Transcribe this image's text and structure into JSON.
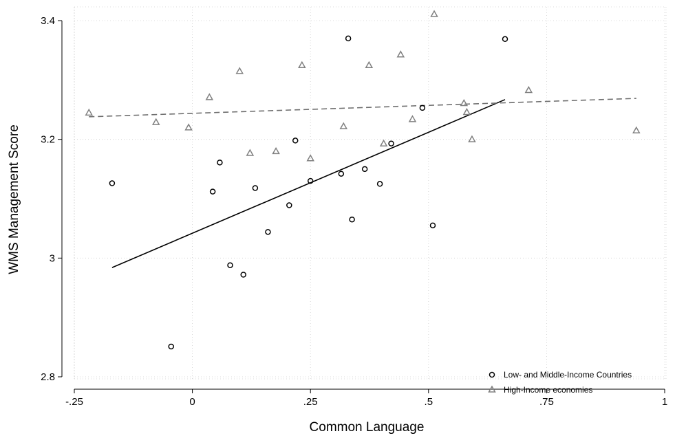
{
  "chart_data": {
    "type": "scatter",
    "xlabel": "Common Language",
    "ylabel": "WMS Management Score",
    "xlim": [
      -0.25,
      1
    ],
    "ylim": [
      2.8,
      3.4
    ],
    "x_ticks": [
      -0.25,
      0,
      0.25,
      0.5,
      0.75,
      1
    ],
    "x_tick_labels": [
      "-.25",
      "0",
      ".25",
      ".5",
      ".75",
      "1"
    ],
    "y_ticks": [
      2.8,
      3,
      3.2,
      3.4
    ],
    "y_tick_labels": [
      "2.8",
      "3",
      "3.2",
      "3.4"
    ],
    "grid": true,
    "legend_position": "bottom-right",
    "colors": {
      "low_middle": "#000000",
      "high": "#808080"
    },
    "series": [
      {
        "name": "Low- and Middle-Income Countries",
        "marker": "circle",
        "points": [
          {
            "x": -0.17,
            "y": 3.126
          },
          {
            "x": -0.045,
            "y": 2.851
          },
          {
            "x": 0.043,
            "y": 3.112
          },
          {
            "x": 0.058,
            "y": 3.161
          },
          {
            "x": 0.08,
            "y": 2.988
          },
          {
            "x": 0.108,
            "y": 2.972
          },
          {
            "x": 0.133,
            "y": 3.118
          },
          {
            "x": 0.16,
            "y": 3.044
          },
          {
            "x": 0.205,
            "y": 3.089
          },
          {
            "x": 0.218,
            "y": 3.198
          },
          {
            "x": 0.25,
            "y": 3.13
          },
          {
            "x": 0.315,
            "y": 3.142
          },
          {
            "x": 0.33,
            "y": 3.37
          },
          {
            "x": 0.338,
            "y": 3.065
          },
          {
            "x": 0.365,
            "y": 3.15
          },
          {
            "x": 0.397,
            "y": 3.125
          },
          {
            "x": 0.421,
            "y": 3.193
          },
          {
            "x": 0.487,
            "y": 3.253
          },
          {
            "x": 0.509,
            "y": 3.055
          },
          {
            "x": 0.662,
            "y": 3.369
          }
        ],
        "fit_line": {
          "x": [
            -0.17,
            0.662
          ],
          "y": [
            2.984,
            3.267
          ],
          "style": "solid"
        }
      },
      {
        "name": "High-Income economies",
        "marker": "triangle",
        "points": [
          {
            "x": -0.219,
            "y": 3.245
          },
          {
            "x": -0.077,
            "y": 3.229
          },
          {
            "x": -0.008,
            "y": 3.22
          },
          {
            "x": 0.036,
            "y": 3.271
          },
          {
            "x": 0.1,
            "y": 3.315
          },
          {
            "x": 0.122,
            "y": 3.177
          },
          {
            "x": 0.177,
            "y": 3.18
          },
          {
            "x": 0.232,
            "y": 3.325
          },
          {
            "x": 0.25,
            "y": 3.168
          },
          {
            "x": 0.32,
            "y": 3.222
          },
          {
            "x": 0.374,
            "y": 3.325
          },
          {
            "x": 0.405,
            "y": 3.193
          },
          {
            "x": 0.441,
            "y": 3.343
          },
          {
            "x": 0.466,
            "y": 3.234
          },
          {
            "x": 0.512,
            "y": 3.411
          },
          {
            "x": 0.575,
            "y": 3.261
          },
          {
            "x": 0.581,
            "y": 3.246
          },
          {
            "x": 0.592,
            "y": 3.2
          },
          {
            "x": 0.712,
            "y": 3.283
          },
          {
            "x": 0.94,
            "y": 3.215
          }
        ],
        "fit_line": {
          "x": [
            -0.219,
            0.94
          ],
          "y": [
            3.238,
            3.269
          ],
          "style": "dashed"
        }
      }
    ]
  }
}
